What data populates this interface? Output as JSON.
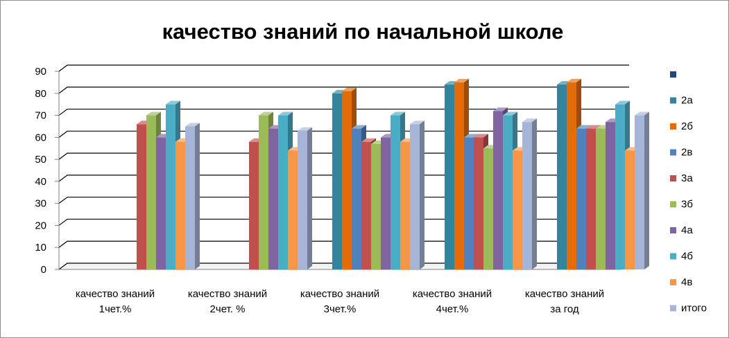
{
  "chart_data": {
    "type": "bar",
    "title": "качество знаний по начальной школе",
    "xlabel": "",
    "ylabel": "",
    "ylim": [
      0,
      90
    ],
    "yticks": [
      0,
      10,
      20,
      30,
      40,
      50,
      60,
      70,
      80,
      90
    ],
    "grid": true,
    "legend_position": "right",
    "categories": [
      [
        "качество знаний",
        "1чет.%"
      ],
      [
        "качество знаний",
        "2чет. %"
      ],
      [
        "качество знаний",
        "3чет.%"
      ],
      [
        "качество знаний",
        "4чет.%"
      ],
      [
        "качество знаний",
        "за год"
      ]
    ],
    "series": [
      {
        "name": "",
        "color": "#1f497d",
        "values": [
          null,
          null,
          null,
          null,
          null
        ]
      },
      {
        "name": "2а",
        "color": "#31849b",
        "values": [
          null,
          null,
          80,
          84,
          84
        ]
      },
      {
        "name": "2б",
        "color": "#e36c09",
        "values": [
          null,
          null,
          81,
          85,
          85
        ]
      },
      {
        "name": "2в",
        "color": "#4f81bd",
        "values": [
          null,
          null,
          64,
          60,
          64
        ]
      },
      {
        "name": "3а",
        "color": "#c0504d",
        "values": [
          66,
          58,
          58,
          60,
          64
        ]
      },
      {
        "name": "3б",
        "color": "#9bbb59",
        "values": [
          70,
          70,
          57,
          55,
          64
        ]
      },
      {
        "name": "4а",
        "color": "#8064a2",
        "values": [
          60,
          64,
          60,
          72,
          67
        ]
      },
      {
        "name": "4б",
        "color": "#4bacc6",
        "values": [
          75,
          70,
          70,
          70,
          75
        ]
      },
      {
        "name": "4в",
        "color": "#f79646",
        "values": [
          58,
          54,
          58,
          54,
          54
        ]
      },
      {
        "name": "итого",
        "color": "#a6b5d7",
        "values": [
          65,
          63,
          66,
          67,
          70
        ]
      }
    ]
  }
}
